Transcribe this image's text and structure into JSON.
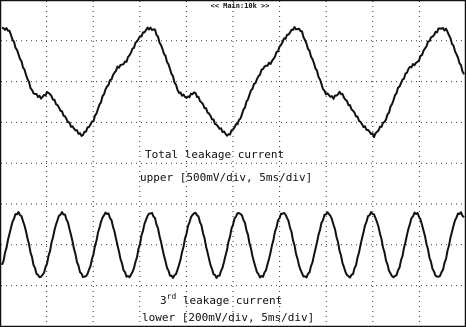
{
  "header": {
    "title": "<< Main:10k >>"
  },
  "upper_caption": {
    "line1": "Total leakage current",
    "line2": "upper [500mV/div, 5ms/div]"
  },
  "lower_caption": {
    "number": "3",
    "superscript": "rd",
    "rest": " leakage current",
    "line2": "lower [200mV/div, 5ms/div]"
  }
}
